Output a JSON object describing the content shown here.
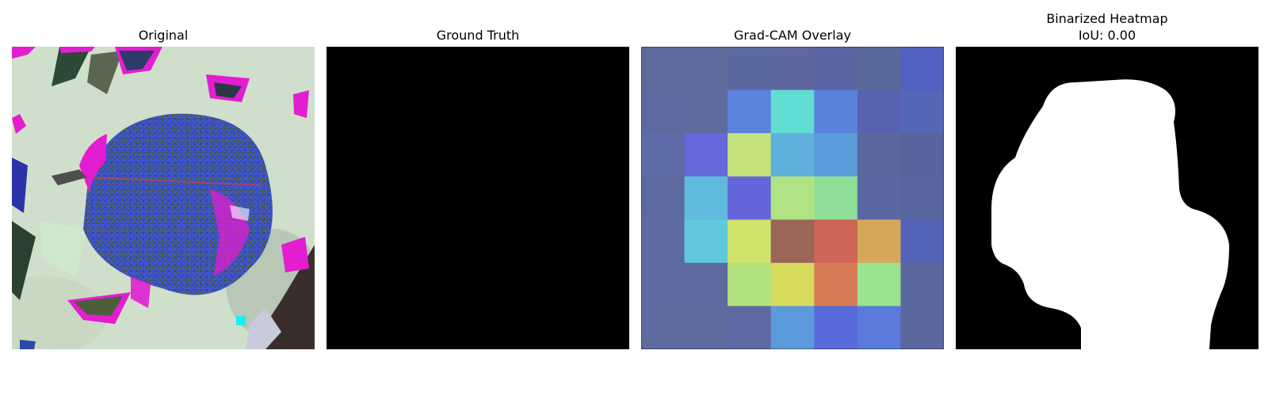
{
  "panels": [
    {
      "title": "Original"
    },
    {
      "title": "Ground Truth"
    },
    {
      "title": "Grad-CAM Overlay"
    },
    {
      "title": "Binarized Heatmap",
      "subtitle": "IoU: 0.00"
    }
  ],
  "colors": {
    "background": "#ffffff",
    "leaf_blue": "#3f55d8",
    "magenta": "#e21ed0",
    "pale_green": "#cfe0cc",
    "mask_white": "#ffffff",
    "mask_black": "#000000"
  },
  "gradcam_grid": [
    [
      "#5f6a9c",
      "#5f6a9c",
      "#5a6aa0",
      "#5e689f",
      "#5a65a4",
      "#596999",
      "#5361c2"
    ],
    [
      "#5e6a9f",
      "#5f6a9f",
      "#5b82dc",
      "#62ddd4",
      "#5a82dc",
      "#5863b0",
      "#5667b8"
    ],
    [
      "#5d6ca6",
      "#6668dc",
      "#c4e37c",
      "#5fb0da",
      "#5b9cdb",
      "#5b689e",
      "#58649e"
    ],
    [
      "#5d6a9f",
      "#5fbadc",
      "#6666dc",
      "#b0e383",
      "#8fdf99",
      "#5a67a2",
      "#58659e"
    ],
    [
      "#5e6aa0",
      "#60c8dc",
      "#d0e36a",
      "#9b6559",
      "#cf6555",
      "#d4a858",
      "#5563b6"
    ],
    [
      "#5e6aa0",
      "#5e6aa0",
      "#b0e37e",
      "#d6db5e",
      "#d77a56",
      "#9ae38f",
      "#5b689e"
    ],
    [
      "#5f6a9f",
      "#5f6a9f",
      "#5f6aa4",
      "#5b9bdb",
      "#5a6bdc",
      "#5a7adc",
      "#5b689e"
    ]
  ]
}
